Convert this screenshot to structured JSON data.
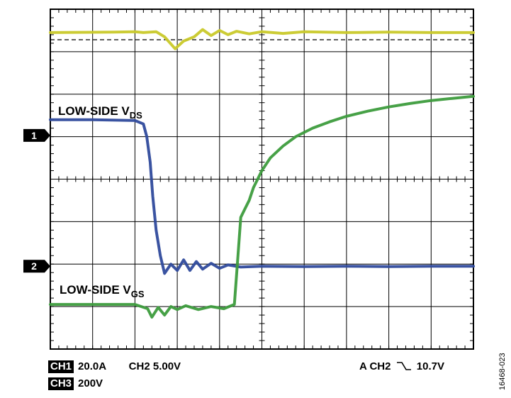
{
  "chart_data": {
    "type": "line",
    "title": "",
    "grid": true,
    "x_divisions": 10,
    "y_divisions": 8,
    "annotations": {
      "vds_label": {
        "main": "LOW-SIDE V",
        "sub": "DS"
      },
      "vgs_label": {
        "main": "LOW-SIDE V",
        "sub": "GS"
      }
    },
    "markers": [
      {
        "label": "1",
        "div": 5.03
      },
      {
        "label": "2",
        "div": 1.95
      }
    ],
    "series": [
      {
        "color": "#c9c92a",
        "x": [
          0,
          1.5,
          2.0,
          2.2,
          2.5,
          2.7,
          2.95,
          3.15,
          3.4,
          3.6,
          3.8,
          4.0,
          4.2,
          4.4,
          4.7,
          5.0,
          5.5,
          6.0,
          7.0,
          8.0,
          9.0,
          10.0
        ],
        "y": [
          7.45,
          7.46,
          7.47,
          7.45,
          7.47,
          7.35,
          7.07,
          7.25,
          7.35,
          7.52,
          7.38,
          7.5,
          7.4,
          7.48,
          7.42,
          7.47,
          7.43,
          7.47,
          7.45,
          7.46,
          7.45,
          7.45
        ]
      },
      {
        "color": "#2f4a9c",
        "x": [
          0,
          1.0,
          2.0,
          2.2,
          2.28,
          2.36,
          2.42,
          2.5,
          2.6,
          2.7,
          2.85,
          3.0,
          3.15,
          3.3,
          3.45,
          3.6,
          3.8,
          4.0,
          4.2,
          4.5,
          5.0,
          6.0,
          7.0,
          8.0,
          9.0,
          10.0
        ],
        "y": [
          5.4,
          5.4,
          5.38,
          5.3,
          5.0,
          4.4,
          3.6,
          2.8,
          2.2,
          1.78,
          2.0,
          1.85,
          2.1,
          1.85,
          2.06,
          1.88,
          2.02,
          1.9,
          1.98,
          1.93,
          1.95,
          1.94,
          1.95,
          1.94,
          1.95,
          1.95
        ]
      },
      {
        "color": "#3d9c3d",
        "x": [
          0,
          1.0,
          2.0,
          2.3,
          2.4,
          2.55,
          2.7,
          2.85,
          3.0,
          3.2,
          3.5,
          3.8,
          4.1,
          4.35,
          4.42,
          4.5,
          4.6,
          4.7,
          4.8,
          5.0,
          5.2,
          5.5,
          5.8,
          6.2,
          6.6,
          7.0,
          7.5,
          8.0,
          8.5,
          9.0,
          9.5,
          10.0
        ],
        "y": [
          1.05,
          1.05,
          1.05,
          0.95,
          0.75,
          0.98,
          0.8,
          1.0,
          0.93,
          1.02,
          0.93,
          1.0,
          0.95,
          1.05,
          2.0,
          3.1,
          3.3,
          3.5,
          3.8,
          4.2,
          4.5,
          4.78,
          5.0,
          5.2,
          5.35,
          5.48,
          5.6,
          5.7,
          5.78,
          5.85,
          5.9,
          5.95
        ]
      }
    ]
  },
  "footer": {
    "ch1_badge": "CH1",
    "ch1_value": "20.0A",
    "ch2_setting": "CH2 5.00V",
    "ch3_badge": "CH3",
    "ch3_value": "200V",
    "trigger_prefix": "A  CH2",
    "trigger_value": "10.7V"
  },
  "figure_id": "16468-023"
}
